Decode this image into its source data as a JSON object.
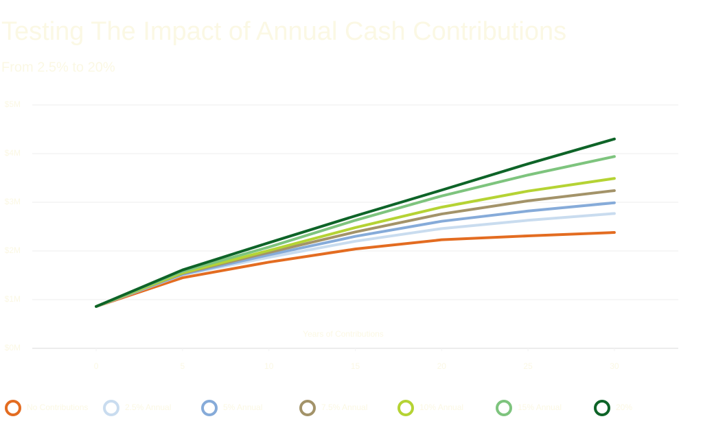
{
  "chart_data": {
    "type": "line",
    "title": "Testing The Impact of Annual Cash Contributions",
    "subtitle": "From 2.5% to 20%",
    "x_label": "Years of Contributions",
    "x": [
      0,
      5,
      10,
      15,
      20,
      25,
      30
    ],
    "xlim": [
      -3.7,
      33.7
    ],
    "xticks": [
      0,
      5,
      10,
      15,
      20,
      25,
      30
    ],
    "ylim": [
      0,
      5
    ],
    "yticks": [
      {
        "value": 0,
        "label": "$0M"
      },
      {
        "value": 1,
        "label": "$1M"
      },
      {
        "value": 2,
        "label": "$2M"
      },
      {
        "value": 3,
        "label": "$3M"
      },
      {
        "value": 4,
        "label": "$4M"
      },
      {
        "value": 5,
        "label": "$5M"
      }
    ],
    "grid": true,
    "legend": "bottom",
    "series": [
      {
        "name": "No Contributions",
        "color": "#e36c21",
        "values": [
          0.86,
          1.45,
          1.77,
          2.04,
          2.23,
          2.31,
          2.38
        ]
      },
      {
        "name": "2.5% Annual",
        "color": "#c9dcef",
        "values": [
          0.86,
          1.51,
          1.87,
          2.2,
          2.46,
          2.63,
          2.77
        ]
      },
      {
        "name": "5% Annual",
        "color": "#86abd9",
        "values": [
          0.86,
          1.52,
          1.92,
          2.3,
          2.61,
          2.82,
          2.99
        ]
      },
      {
        "name": "7.5% Annual",
        "color": "#a39369",
        "values": [
          0.86,
          1.54,
          1.97,
          2.39,
          2.76,
          3.03,
          3.24
        ]
      },
      {
        "name": "10% Annual",
        "color": "#b5d334",
        "values": [
          0.86,
          1.55,
          2.01,
          2.48,
          2.9,
          3.23,
          3.49
        ]
      },
      {
        "name": "15% Annual",
        "color": "#7ec47e",
        "values": [
          0.86,
          1.58,
          2.08,
          2.63,
          3.13,
          3.56,
          3.94
        ]
      },
      {
        "name": "20%",
        "color": "#0e6428",
        "values": [
          0.86,
          1.61,
          2.17,
          2.72,
          3.25,
          3.79,
          4.3
        ]
      }
    ]
  }
}
